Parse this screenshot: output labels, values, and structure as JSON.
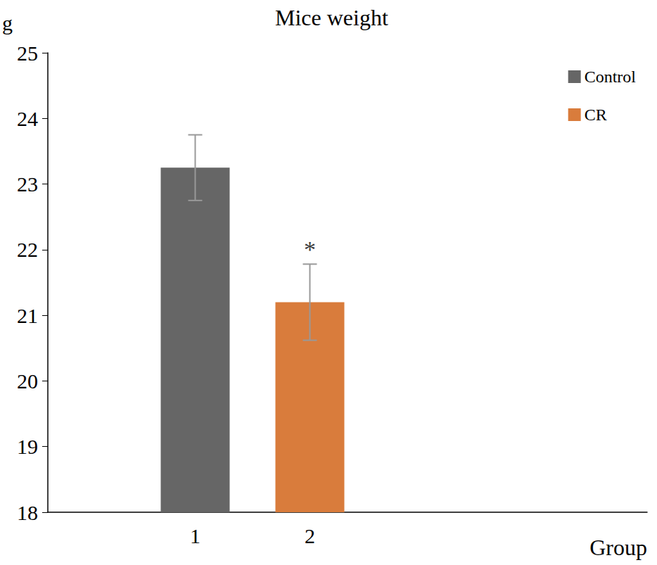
{
  "chart_data": {
    "type": "bar",
    "title": "Mice weight",
    "y_label": "g",
    "x_label": "Group",
    "categories": [
      "1",
      "2"
    ],
    "series": [
      {
        "name": "Control",
        "color": "#666666",
        "values": [
          23.25,
          null
        ],
        "errors": [
          0.5,
          null
        ]
      },
      {
        "name": "CR",
        "color": "#d97c3c",
        "values": [
          null,
          21.2
        ],
        "errors": [
          null,
          0.58
        ]
      }
    ],
    "annotations": [
      {
        "text": "*",
        "category": "2"
      }
    ],
    "ylim": [
      18,
      25
    ],
    "yticks": [
      18,
      19,
      20,
      21,
      22,
      23,
      24,
      25
    ],
    "grid": false,
    "legend": "upper right"
  }
}
